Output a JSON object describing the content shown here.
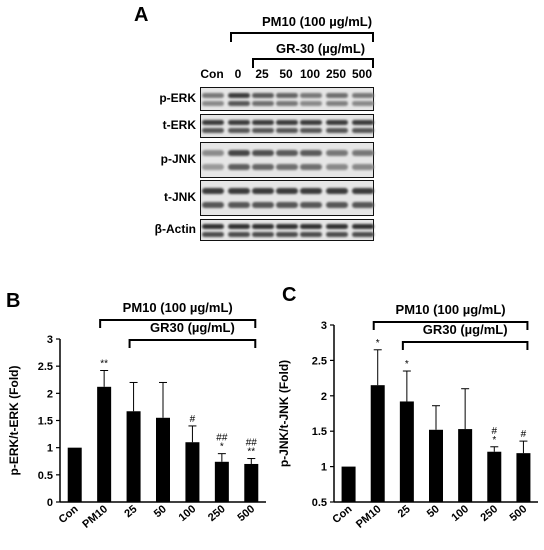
{
  "panels": {
    "a": "A",
    "b": "B",
    "c": "C"
  },
  "western_blot": {
    "treatment_label": "PM10 (100 µg/mL)",
    "sub_treatment_label": "GR-30 (µg/mL)",
    "lanes": [
      "Con",
      "0",
      "25",
      "50",
      "100",
      "250",
      "500"
    ],
    "rows": [
      {
        "label": "p-ERK",
        "intensities": [
          0.55,
          0.85,
          0.7,
          0.65,
          0.55,
          0.6,
          0.55
        ]
      },
      {
        "label": "t-ERK",
        "intensities": [
          0.85,
          0.85,
          0.85,
          0.85,
          0.85,
          0.85,
          0.85
        ]
      },
      {
        "label": "p-JNK",
        "intensities": [
          0.45,
          0.8,
          0.75,
          0.7,
          0.7,
          0.55,
          0.55
        ]
      },
      {
        "label": "t-JNK",
        "intensities": [
          0.85,
          0.85,
          0.85,
          0.85,
          0.85,
          0.85,
          0.85
        ]
      },
      {
        "label": "β-Actin",
        "intensities": [
          0.9,
          0.9,
          0.9,
          0.9,
          0.9,
          0.9,
          0.9
        ]
      }
    ]
  },
  "chart_data": [
    {
      "type": "bar",
      "panel": "B",
      "categories": [
        "Con",
        "PM10",
        "25",
        "50",
        "100",
        "250",
        "500"
      ],
      "values": [
        1.0,
        2.12,
        1.67,
        1.55,
        1.1,
        0.74,
        0.7
      ],
      "errors": [
        0,
        0.3,
        0.53,
        0.65,
        0.3,
        0.15,
        0.1
      ],
      "annotations": [
        "",
        "**",
        "",
        "",
        "#",
        "##\n*",
        "##\n**"
      ],
      "ylabel": "p-ERK/t-ERK (Fold)",
      "ylim": [
        0,
        3
      ],
      "yticks": [
        "0",
        "0.5",
        "1",
        "1.5",
        "2",
        "2.5",
        "3"
      ],
      "treatment_label": "PM10 (100 µg/mL)",
      "sub_treatment_label": "GR30 (µg/mL)",
      "color": "#000000"
    },
    {
      "type": "bar",
      "panel": "C",
      "categories": [
        "Con",
        "PM10",
        "25",
        "50",
        "100",
        "250",
        "500"
      ],
      "values": [
        1.0,
        2.15,
        1.92,
        1.52,
        1.53,
        1.21,
        1.19
      ],
      "errors": [
        0,
        0.5,
        0.43,
        0.34,
        0.57,
        0.07,
        0.17
      ],
      "annotations": [
        "",
        "*",
        "*",
        "",
        "",
        "#\n*",
        "#"
      ],
      "ylabel": "p-JNK/t-JNK (Fold)",
      "ylim": [
        0.5,
        3
      ],
      "yticks": [
        "0.5",
        "1",
        "1.5",
        "2",
        "2.5",
        "3"
      ],
      "treatment_label": "PM10 (100 µg/mL)",
      "sub_treatment_label": "GR30 (µg/mL)",
      "color": "#000000"
    }
  ]
}
